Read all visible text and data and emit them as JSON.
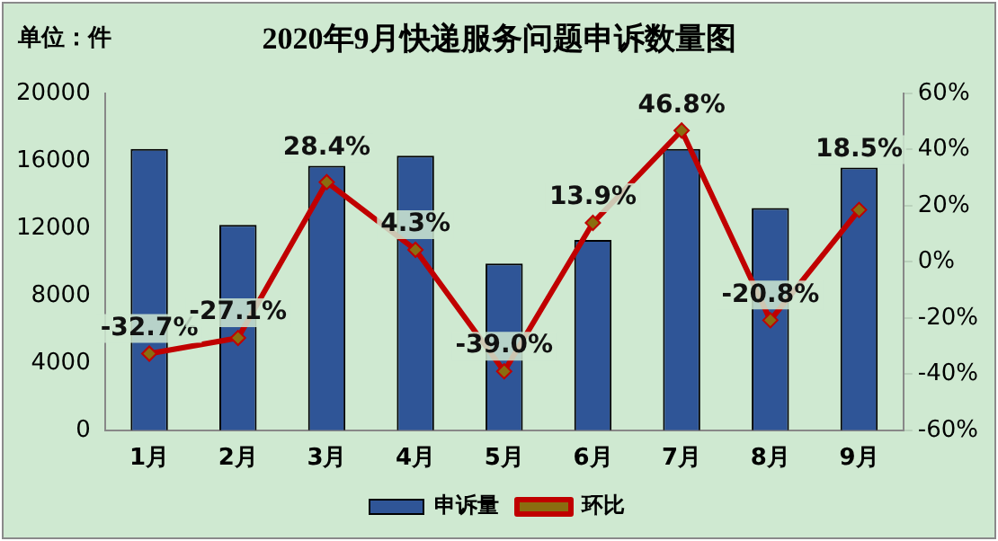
{
  "chart_data": {
    "type": "bar",
    "title": "2020年9月快递服务问题申诉数量图",
    "annotations": [
      "单位：件"
    ],
    "categories": [
      "1月",
      "2月",
      "3月",
      "4月",
      "5月",
      "6月",
      "7月",
      "8月",
      "9月"
    ],
    "series": [
      {
        "name": "申诉量",
        "color": "#2f5597",
        "values": [
          16700,
          12200,
          15700,
          16300,
          9900,
          11300,
          16700,
          13200,
          15600
        ]
      },
      {
        "name": "环比",
        "type": "line",
        "axis": "y2",
        "color": "#c00000",
        "marker": "diamond",
        "values": [
          -32.7,
          -27.1,
          28.4,
          4.3,
          -39.0,
          13.9,
          46.8,
          -20.8,
          18.5
        ],
        "value_labels": [
          "-32.7%",
          "-27.1%",
          "28.4%",
          "4.3%",
          "-39.0%",
          "13.9%",
          "46.8%",
          "-20.8%",
          "18.5%"
        ]
      }
    ],
    "ylim": [
      0,
      20000
    ],
    "yticks": [
      0,
      4000,
      8000,
      12000,
      16000,
      20000
    ],
    "y2lim": [
      -60,
      60
    ],
    "y2ticks": [
      {
        "value": -60,
        "label": "-60%"
      },
      {
        "value": -40,
        "label": "-40%"
      },
      {
        "value": -20,
        "label": "-20%"
      },
      {
        "value": 0,
        "label": "0%"
      },
      {
        "value": 20,
        "label": "20%"
      },
      {
        "value": 40,
        "label": "40%"
      },
      {
        "value": 60,
        "label": "60%"
      }
    ],
    "grid": false,
    "legend": "bottom"
  }
}
